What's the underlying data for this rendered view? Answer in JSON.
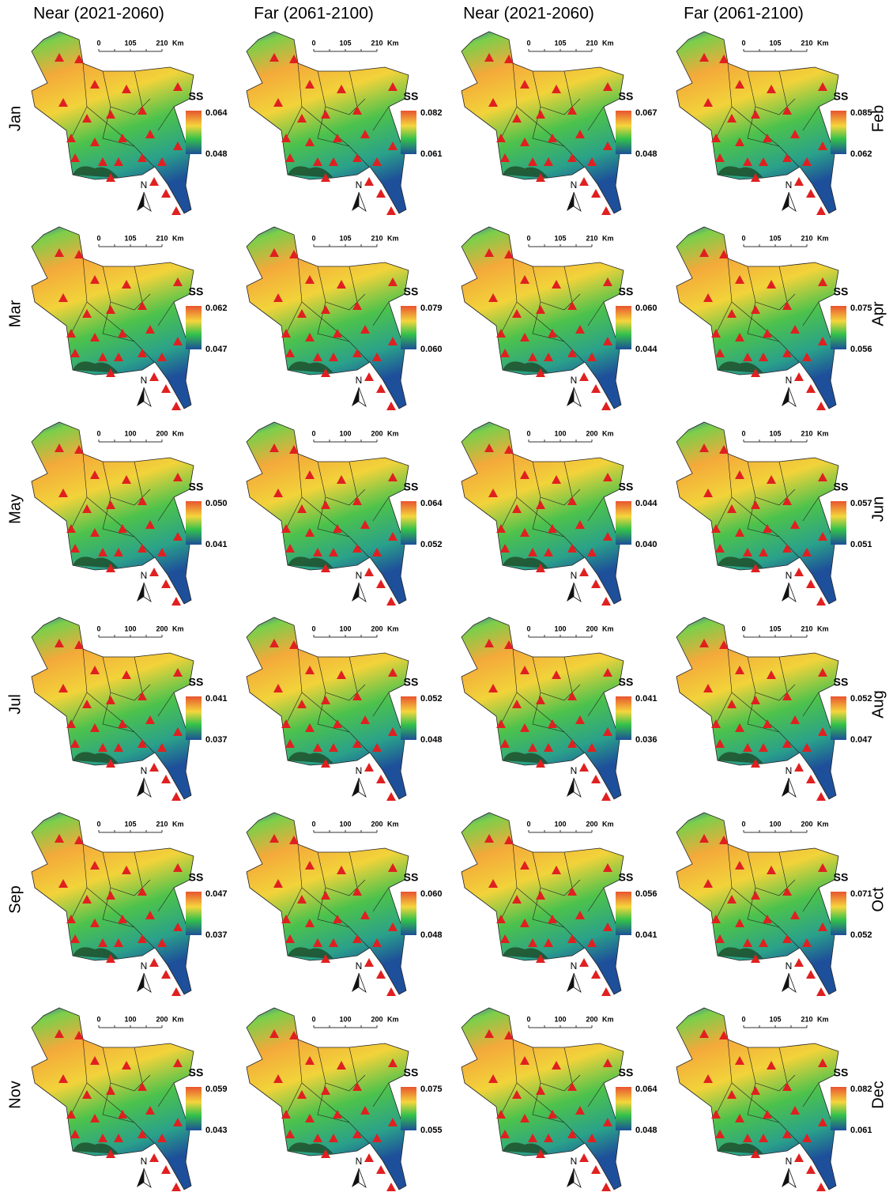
{
  "columns": [
    "Near (2021-2060)",
    "Far (2061-2100)",
    "Near (2021-2060)",
    "Far (2061-2100)"
  ],
  "legend_title": "SS",
  "north_label": "N",
  "scale_unit": "Km",
  "rows": [
    {
      "left": "Jan",
      "right": "Feb",
      "panels": [
        {
          "scale": [
            "0",
            "105",
            "210"
          ],
          "legend_max": "0.064",
          "legend_min": "0.048"
        },
        {
          "scale": [
            "0",
            "105",
            "210"
          ],
          "legend_max": "0.082",
          "legend_min": "0.061"
        },
        {
          "scale": [
            "0",
            "105",
            "210"
          ],
          "legend_max": "0.067",
          "legend_min": "0.048"
        },
        {
          "scale": [
            "0",
            "105",
            "210"
          ],
          "legend_max": "0.085",
          "legend_min": "0.062"
        }
      ]
    },
    {
      "left": "Mar",
      "right": "Apr",
      "panels": [
        {
          "scale": [
            "0",
            "105",
            "210"
          ],
          "legend_max": "0.062",
          "legend_min": "0.047"
        },
        {
          "scale": [
            "0",
            "105",
            "210"
          ],
          "legend_max": "0.079",
          "legend_min": "0.060"
        },
        {
          "scale": [
            "0",
            "105",
            "210"
          ],
          "legend_max": "0.060",
          "legend_min": "0.044"
        },
        {
          "scale": [
            "0",
            "105",
            "210"
          ],
          "legend_max": "0.075",
          "legend_min": "0.056"
        }
      ]
    },
    {
      "left": "May",
      "right": "Jun",
      "panels": [
        {
          "scale": [
            "0",
            "100",
            "200"
          ],
          "legend_max": "0.050",
          "legend_min": "0.041"
        },
        {
          "scale": [
            "0",
            "100",
            "200"
          ],
          "legend_max": "0.064",
          "legend_min": "0.052"
        },
        {
          "scale": [
            "0",
            "100",
            "200"
          ],
          "legend_max": "0.044",
          "legend_min": "0.040"
        },
        {
          "scale": [
            "0",
            "105",
            "210"
          ],
          "legend_max": "0.057",
          "legend_min": "0.051"
        }
      ]
    },
    {
      "left": "Jul",
      "right": "Aug",
      "panels": [
        {
          "scale": [
            "0",
            "100",
            "200"
          ],
          "legend_max": "0.041",
          "legend_min": "0.037"
        },
        {
          "scale": [
            "0",
            "100",
            "200"
          ],
          "legend_max": "0.052",
          "legend_min": "0.048"
        },
        {
          "scale": [
            "0",
            "100",
            "200"
          ],
          "legend_max": "0.041",
          "legend_min": "0.036"
        },
        {
          "scale": [
            "0",
            "105",
            "210"
          ],
          "legend_max": "0.052",
          "legend_min": "0.047"
        }
      ]
    },
    {
      "left": "Sep",
      "right": "Oct",
      "panels": [
        {
          "scale": [
            "0",
            "105",
            "210"
          ],
          "legend_max": "0.047",
          "legend_min": "0.037"
        },
        {
          "scale": [
            "0",
            "100",
            "200"
          ],
          "legend_max": "0.060",
          "legend_min": "0.048"
        },
        {
          "scale": [
            "0",
            "100",
            "200"
          ],
          "legend_max": "0.056",
          "legend_min": "0.041"
        },
        {
          "scale": [
            "0",
            "100",
            "200"
          ],
          "legend_max": "0.071",
          "legend_min": "0.052"
        }
      ]
    },
    {
      "left": "Nov",
      "right": "Dec",
      "panels": [
        {
          "scale": [
            "0",
            "100",
            "200"
          ],
          "legend_max": "0.059",
          "legend_min": "0.043"
        },
        {
          "scale": [
            "0",
            "100",
            "200"
          ],
          "legend_max": "0.075",
          "legend_min": "0.055"
        },
        {
          "scale": [
            "0",
            "100",
            "200"
          ],
          "legend_max": "0.064",
          "legend_min": "0.048"
        },
        {
          "scale": [
            "0",
            "105",
            "210"
          ],
          "legend_max": "0.082",
          "legend_min": "0.061"
        }
      ]
    }
  ]
}
